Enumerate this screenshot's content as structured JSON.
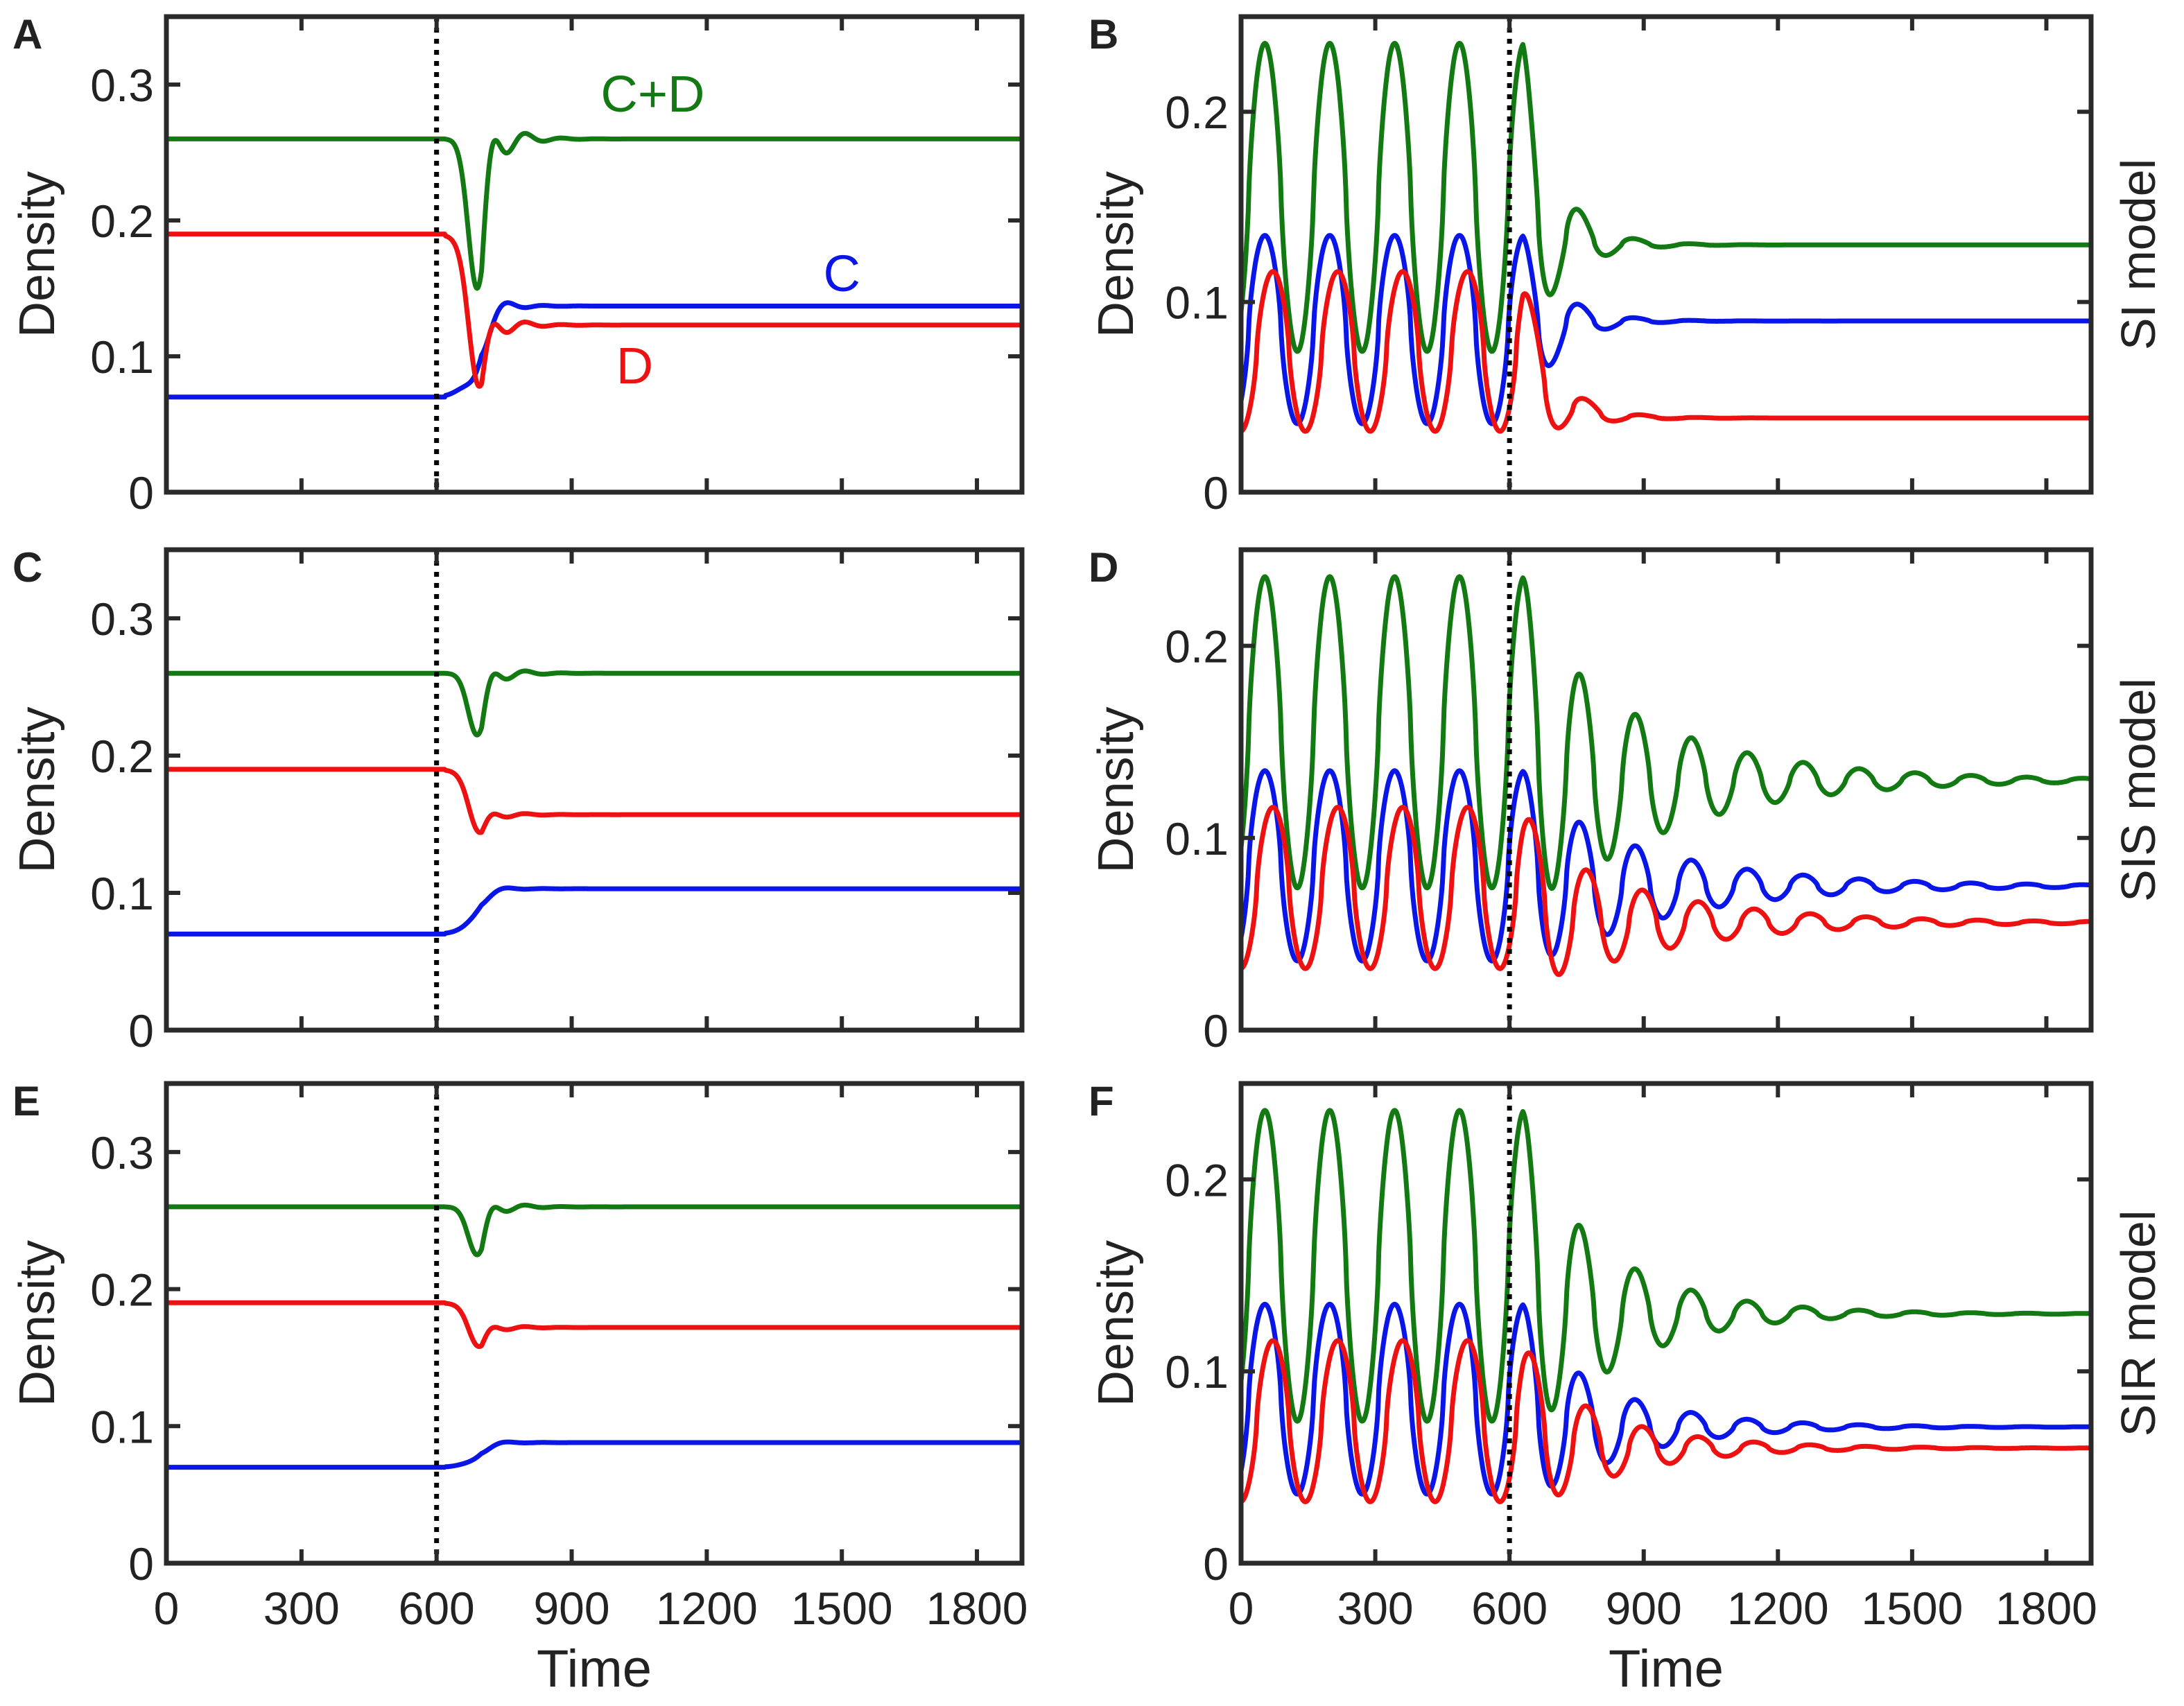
{
  "figure": {
    "x_label": "Time",
    "y_label": "Density",
    "vline_time": 600,
    "time_range": [
      0,
      1900
    ],
    "row_labels": [
      "SI model",
      "SIS model",
      "SIR model"
    ],
    "colors": {
      "C": "#0a16e8",
      "D": "#ee1111",
      "CD": "#137a13",
      "axis": "#2a2a2a",
      "vline": "#000000"
    }
  },
  "chart_data": [
    {
      "panel": "A",
      "type": "line",
      "xlabel": "",
      "ylabel": "Density",
      "xlim": [
        0,
        1900
      ],
      "ylim": [
        0,
        0.35
      ],
      "yticks": [
        "0",
        "0.1",
        "0.2",
        "0.3"
      ],
      "xticks": [],
      "annotations": [
        "C+D",
        "C",
        "D"
      ],
      "series": [
        {
          "name": "C+D",
          "before": 0.26,
          "after": 0.26,
          "oscillating": false
        },
        {
          "name": "D",
          "before": 0.19,
          "after": 0.123,
          "oscillating": false
        },
        {
          "name": "C",
          "before": 0.07,
          "after": 0.137,
          "oscillating": false
        }
      ]
    },
    {
      "panel": "B",
      "type": "line",
      "xlabel": "",
      "ylabel": "Density",
      "row_label": "SI model",
      "xlim": [
        0,
        1900
      ],
      "ylim": [
        0,
        0.25
      ],
      "yticks": [
        "0",
        "0.1",
        "0.2"
      ],
      "xticks": [],
      "series": [
        {
          "name": "C+D",
          "before": 0.13,
          "after": 0.13,
          "oscillating": true
        },
        {
          "name": "C",
          "before": 0.09,
          "after": 0.09,
          "oscillating": true
        },
        {
          "name": "D",
          "before": 0.04,
          "after": 0.039,
          "oscillating": true
        }
      ]
    },
    {
      "panel": "C",
      "type": "line",
      "xlabel": "",
      "ylabel": "Density",
      "xlim": [
        0,
        1900
      ],
      "ylim": [
        0,
        0.35
      ],
      "yticks": [
        "0",
        "0.1",
        "0.2",
        "0.3"
      ],
      "xticks": [],
      "series": [
        {
          "name": "C+D",
          "before": 0.26,
          "after": 0.26,
          "oscillating": false
        },
        {
          "name": "D",
          "before": 0.19,
          "after": 0.157,
          "oscillating": false
        },
        {
          "name": "C",
          "before": 0.07,
          "after": 0.103,
          "oscillating": false
        }
      ]
    },
    {
      "panel": "D",
      "type": "line",
      "xlabel": "",
      "ylabel": "Density",
      "row_label": "SIS model",
      "xlim": [
        0,
        1900
      ],
      "ylim": [
        0,
        0.25
      ],
      "yticks": [
        "0",
        "0.1",
        "0.2"
      ],
      "xticks": [],
      "series": [
        {
          "name": "C+D",
          "before": 0.13,
          "after": 0.13,
          "oscillating": true
        },
        {
          "name": "C",
          "before": 0.09,
          "after": 0.075,
          "oscillating": true
        },
        {
          "name": "D",
          "before": 0.04,
          "after": 0.056,
          "oscillating": true
        }
      ]
    },
    {
      "panel": "E",
      "type": "line",
      "xlabel": "Time",
      "ylabel": "Density",
      "xlim": [
        0,
        1900
      ],
      "ylim": [
        0,
        0.35
      ],
      "yticks": [
        "0",
        "0.1",
        "0.2",
        "0.3"
      ],
      "xticks": [
        "0",
        "300",
        "600",
        "900",
        "1200",
        "1500",
        "1800"
      ],
      "series": [
        {
          "name": "C+D",
          "before": 0.26,
          "after": 0.26,
          "oscillating": false
        },
        {
          "name": "D",
          "before": 0.19,
          "after": 0.172,
          "oscillating": false
        },
        {
          "name": "C",
          "before": 0.07,
          "after": 0.088,
          "oscillating": false
        }
      ]
    },
    {
      "panel": "F",
      "type": "line",
      "xlabel": "Time",
      "ylabel": "Density",
      "row_label": "SIR model",
      "xlim": [
        0,
        1900
      ],
      "ylim": [
        0,
        0.25
      ],
      "yticks": [
        "0",
        "0.1",
        "0.2"
      ],
      "xticks": [
        "0",
        "300",
        "600",
        "900",
        "1200",
        "1500",
        "1800"
      ],
      "series": [
        {
          "name": "C+D",
          "before": 0.13,
          "after": 0.13,
          "oscillating": true
        },
        {
          "name": "C",
          "before": 0.09,
          "after": 0.071,
          "oscillating": true
        },
        {
          "name": "D",
          "before": 0.04,
          "after": 0.06,
          "oscillating": true
        }
      ]
    }
  ]
}
